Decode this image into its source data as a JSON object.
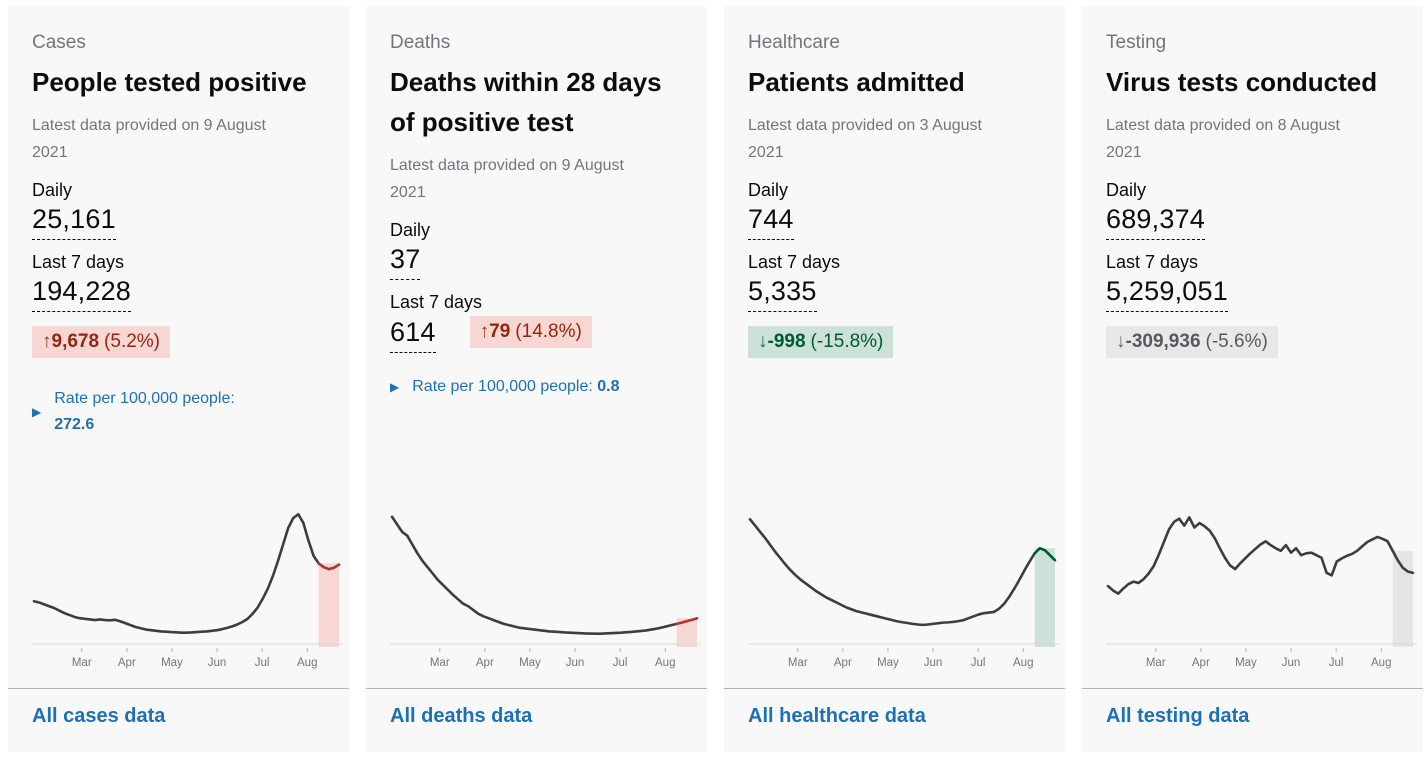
{
  "axis_months": [
    "Mar",
    "Apr",
    "May",
    "Jun",
    "Jul",
    "Aug"
  ],
  "colors": {
    "text": "#0b0c0c",
    "secondary_text": "#6f777b",
    "link_blue": "#1d70b8",
    "card_background": "#f8f8f8",
    "divider": "#b1b4b6",
    "chart_line": "#383f43",
    "badge_red_text": "#942514",
    "badge_red_bg": "#f6d7d2",
    "badge_green_text": "#005a30",
    "badge_green_bg": "#cce2d8",
    "badge_gray_text": "#565a5e",
    "badge_gray_bg": "#e8e8e8"
  },
  "cards": [
    {
      "category": "Cases",
      "title": "People tested positive",
      "updated": "Latest data provided on 9 August 2021",
      "daily_label": "Daily",
      "daily_value": "25,161",
      "last7_label": "Last 7 days",
      "last7_value": "194,228",
      "change": {
        "arrow": "↑",
        "value": "9,678",
        "percent": "(5.2%)",
        "tone": "red",
        "direction": "up"
      },
      "rate": {
        "label": "Rate per 100,000 people:",
        "value": "272.6"
      },
      "footer_link": "All cases data",
      "chart": {
        "type": "line",
        "x_labels": [
          "Mar",
          "Apr",
          "May",
          "Jun",
          "Jul",
          "Aug"
        ],
        "values": [
          0.3,
          0.29,
          0.275,
          0.26,
          0.245,
          0.225,
          0.205,
          0.19,
          0.175,
          0.165,
          0.16,
          0.155,
          0.15,
          0.155,
          0.15,
          0.148,
          0.152,
          0.14,
          0.125,
          0.11,
          0.095,
          0.085,
          0.075,
          0.07,
          0.065,
          0.06,
          0.058,
          0.055,
          0.053,
          0.05,
          0.05,
          0.052,
          0.055,
          0.058,
          0.06,
          0.065,
          0.07,
          0.078,
          0.088,
          0.1,
          0.115,
          0.135,
          0.16,
          0.2,
          0.25,
          0.32,
          0.4,
          0.5,
          0.62,
          0.75,
          0.88,
          0.96,
          0.99,
          0.92,
          0.78,
          0.66,
          0.6,
          0.57,
          0.555,
          0.565,
          0.59
        ],
        "highlight_count": 5,
        "line_color": "#383f43",
        "highlight_color": "#b1342a",
        "band_color": "#f6d7d2"
      }
    },
    {
      "category": "Deaths",
      "title": "Deaths within 28 days of positive test",
      "updated": "Latest data provided on 9 August 2021",
      "daily_label": "Daily",
      "daily_value": "37",
      "last7_label": "Last 7 days",
      "last7_value": "614",
      "change": {
        "arrow": "↑",
        "value": "79",
        "percent": "(14.8%)",
        "tone": "red",
        "direction": "up"
      },
      "rate": {
        "label": "Rate per 100,000 people:",
        "value": "0.8"
      },
      "footer_link": "All deaths data",
      "chart": {
        "type": "line",
        "x_labels": [
          "Mar",
          "Apr",
          "May",
          "Jun",
          "Jul",
          "Aug"
        ],
        "values": [
          0.97,
          0.91,
          0.85,
          0.82,
          0.75,
          0.68,
          0.62,
          0.57,
          0.52,
          0.47,
          0.43,
          0.39,
          0.35,
          0.315,
          0.28,
          0.26,
          0.23,
          0.2,
          0.18,
          0.165,
          0.15,
          0.135,
          0.12,
          0.11,
          0.1,
          0.09,
          0.085,
          0.08,
          0.075,
          0.07,
          0.065,
          0.06,
          0.058,
          0.055,
          0.052,
          0.05,
          0.048,
          0.046,
          0.044,
          0.043,
          0.042,
          0.042,
          0.044,
          0.046,
          0.048,
          0.05,
          0.053,
          0.056,
          0.06,
          0.064,
          0.068,
          0.075,
          0.082,
          0.09,
          0.1,
          0.11,
          0.12,
          0.13,
          0.142,
          0.152,
          0.165
        ],
        "highlight_count": 5,
        "line_color": "#383f43",
        "highlight_color": "#b1342a",
        "band_color": "#f6d7d2"
      }
    },
    {
      "category": "Healthcare",
      "title": "Patients admitted",
      "updated": "Latest data provided on 3 August 2021",
      "daily_label": "Daily",
      "daily_value": "744",
      "last7_label": "Last 7 days",
      "last7_value": "5,335",
      "change": {
        "arrow": "↓",
        "value": "-998",
        "percent": "(-15.8%)",
        "tone": "green",
        "direction": "down"
      },
      "rate": null,
      "footer_link": "All healthcare data",
      "chart": {
        "type": "line",
        "x_labels": [
          "Mar",
          "Apr",
          "May",
          "Jun",
          "Jul",
          "Aug"
        ],
        "values": [
          0.95,
          0.9,
          0.85,
          0.8,
          0.745,
          0.69,
          0.64,
          0.59,
          0.545,
          0.505,
          0.47,
          0.44,
          0.41,
          0.38,
          0.355,
          0.33,
          0.31,
          0.29,
          0.27,
          0.25,
          0.235,
          0.22,
          0.21,
          0.2,
          0.19,
          0.18,
          0.17,
          0.16,
          0.15,
          0.14,
          0.133,
          0.127,
          0.12,
          0.115,
          0.112,
          0.115,
          0.12,
          0.125,
          0.13,
          0.132,
          0.136,
          0.142,
          0.15,
          0.165,
          0.18,
          0.195,
          0.205,
          0.21,
          0.215,
          0.24,
          0.28,
          0.335,
          0.4,
          0.47,
          0.545,
          0.615,
          0.68,
          0.72,
          0.705,
          0.665,
          0.625
        ],
        "highlight_count": 5,
        "line_color": "#383f43",
        "highlight_color": "#005a30",
        "band_color": "#cce2d8"
      }
    },
    {
      "category": "Testing",
      "title": "Virus tests conducted",
      "updated": "Latest data provided on 8 August 2021",
      "daily_label": "Daily",
      "daily_value": "689,374",
      "last7_label": "Last 7 days",
      "last7_value": "5,259,051",
      "change": {
        "arrow": "↓",
        "value": "-309,936",
        "percent": "(-5.6%)",
        "tone": "gray",
        "direction": "down"
      },
      "rate": null,
      "footer_link": "All testing data",
      "chart": {
        "type": "line",
        "x_labels": [
          "Mar",
          "Apr",
          "May",
          "Jun",
          "Jul",
          "Aug"
        ],
        "values": [
          0.42,
          0.385,
          0.36,
          0.4,
          0.435,
          0.455,
          0.445,
          0.475,
          0.52,
          0.58,
          0.67,
          0.77,
          0.87,
          0.93,
          0.955,
          0.9,
          0.965,
          0.885,
          0.92,
          0.895,
          0.86,
          0.8,
          0.72,
          0.645,
          0.585,
          0.555,
          0.6,
          0.64,
          0.68,
          0.715,
          0.75,
          0.775,
          0.745,
          0.72,
          0.7,
          0.745,
          0.685,
          0.72,
          0.665,
          0.68,
          0.685,
          0.665,
          0.645,
          0.525,
          0.505,
          0.615,
          0.64,
          0.66,
          0.675,
          0.7,
          0.735,
          0.77,
          0.79,
          0.81,
          0.795,
          0.775,
          0.7,
          0.625,
          0.565,
          0.535,
          0.525
        ],
        "highlight_count": 5,
        "line_color": "#383f43",
        "highlight_color": "#383f43",
        "band_color": "#e5e5e4"
      }
    }
  ]
}
